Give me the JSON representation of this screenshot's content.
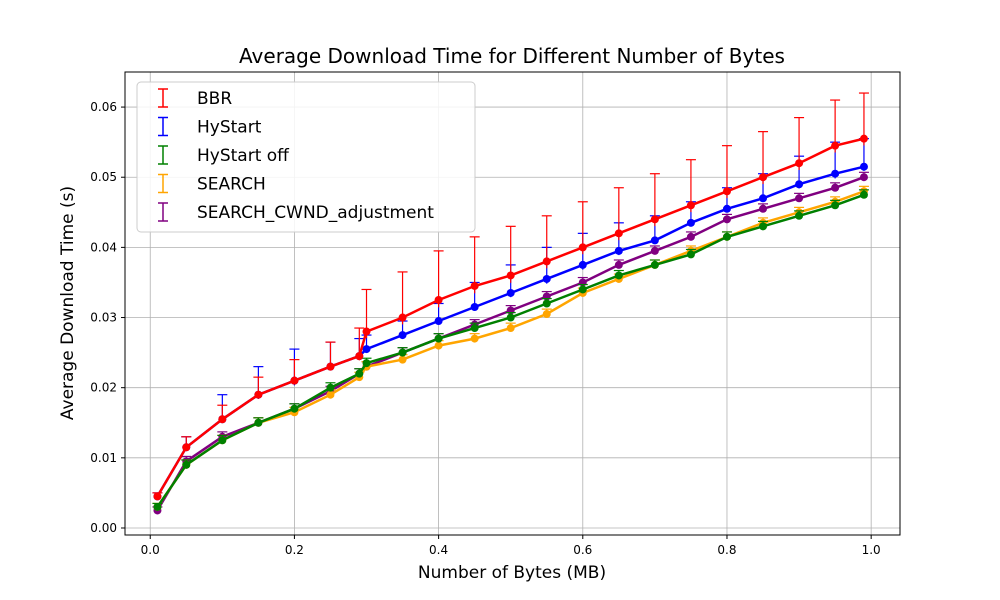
{
  "chart_data": {
    "type": "line",
    "title": "Average Download Time for Different Number of Bytes",
    "xlabel": "Number of Bytes (MB)",
    "ylabel": "Average Download Time (s)",
    "xlim": [
      -0.035,
      1.04
    ],
    "ylim": [
      -0.001,
      0.065
    ],
    "x_ticks": [
      0.0,
      0.2,
      0.4,
      0.6,
      0.8,
      1.0
    ],
    "x_tick_labels": [
      "0.0",
      "0.2",
      "0.4",
      "0.6",
      "0.8",
      "1.0"
    ],
    "y_ticks": [
      0.0,
      0.01,
      0.02,
      0.03,
      0.04,
      0.05,
      0.06
    ],
    "y_tick_labels": [
      "0.00",
      "0.01",
      "0.02",
      "0.03",
      "0.04",
      "0.05",
      "0.06"
    ],
    "grid": true,
    "legend_position": "top-left",
    "error_bars": true,
    "x": [
      0.01,
      0.05,
      0.1,
      0.15,
      0.2,
      0.25,
      0.29,
      0.3,
      0.35,
      0.4,
      0.45,
      0.5,
      0.55,
      0.6,
      0.65,
      0.7,
      0.75,
      0.8,
      0.85,
      0.9,
      0.95,
      0.99
    ],
    "series": [
      {
        "name": "BBR",
        "color": "#ff0000",
        "values": [
          0.0045,
          0.0115,
          0.0155,
          0.019,
          0.021,
          0.023,
          0.0245,
          0.028,
          0.03,
          0.0325,
          0.0345,
          0.036,
          0.038,
          0.04,
          0.042,
          0.044,
          0.046,
          0.048,
          0.05,
          0.052,
          0.0545,
          0.0555
        ],
        "errors": [
          0.0005,
          0.0015,
          0.002,
          0.0025,
          0.003,
          0.0035,
          0.004,
          0.006,
          0.0065,
          0.007,
          0.007,
          0.007,
          0.0065,
          0.0065,
          0.0065,
          0.0065,
          0.0065,
          0.0065,
          0.0065,
          0.0065,
          0.0065,
          0.0065
        ]
      },
      {
        "name": "HyStart",
        "color": "#0000ff",
        "values": [
          0.0045,
          0.0115,
          0.0155,
          0.019,
          0.021,
          0.023,
          0.0245,
          0.0255,
          0.0275,
          0.0295,
          0.0315,
          0.0335,
          0.0355,
          0.0375,
          0.0395,
          0.041,
          0.0435,
          0.0455,
          0.047,
          0.049,
          0.0505,
          0.0515
        ],
        "errors": [
          0.0005,
          0.0015,
          0.0035,
          0.004,
          0.0045,
          0.0035,
          0.0025,
          0.002,
          0.002,
          0.0025,
          0.0035,
          0.004,
          0.0045,
          0.0045,
          0.004,
          0.0035,
          0.003,
          0.003,
          0.0035,
          0.004,
          0.0045,
          0.004
        ]
      },
      {
        "name": "HyStart off",
        "color": "#008000",
        "values": [
          0.003,
          0.009,
          0.0125,
          0.015,
          0.017,
          0.02,
          0.022,
          0.0235,
          0.025,
          0.027,
          0.0285,
          0.03,
          0.032,
          0.034,
          0.036,
          0.0375,
          0.039,
          0.0415,
          0.043,
          0.0445,
          0.046,
          0.0475
        ],
        "errors": [
          0.0005,
          0.0007,
          0.0007,
          0.0007,
          0.0007,
          0.0007,
          0.0007,
          0.0007,
          0.0007,
          0.0007,
          0.0007,
          0.0007,
          0.0007,
          0.0007,
          0.0007,
          0.0007,
          0.0007,
          0.0007,
          0.0007,
          0.0007,
          0.0007,
          0.0007
        ]
      },
      {
        "name": "SEARCH",
        "color": "#ffa500",
        "values": [
          0.003,
          0.009,
          0.0125,
          0.015,
          0.0165,
          0.019,
          0.0215,
          0.023,
          0.024,
          0.026,
          0.027,
          0.0285,
          0.0305,
          0.0335,
          0.0355,
          0.0375,
          0.0395,
          0.0415,
          0.0435,
          0.045,
          0.0465,
          0.048
        ],
        "errors": [
          0.0005,
          0.0007,
          0.0007,
          0.0007,
          0.0007,
          0.0007,
          0.0007,
          0.0007,
          0.0007,
          0.0007,
          0.0007,
          0.0007,
          0.0007,
          0.0007,
          0.0007,
          0.0007,
          0.0007,
          0.0007,
          0.0007,
          0.0007,
          0.0007,
          0.0007
        ]
      },
      {
        "name": "SEARCH_CWND_adjustment",
        "color": "#800080",
        "values": [
          0.0025,
          0.0095,
          0.013,
          0.015,
          0.017,
          0.0195,
          0.022,
          0.023,
          0.025,
          0.027,
          0.029,
          0.031,
          0.033,
          0.035,
          0.0375,
          0.0395,
          0.0415,
          0.044,
          0.0455,
          0.047,
          0.0485,
          0.05
        ],
        "errors": [
          0.0005,
          0.0007,
          0.0007,
          0.0007,
          0.0007,
          0.0007,
          0.0007,
          0.0007,
          0.0007,
          0.0007,
          0.0007,
          0.0007,
          0.0007,
          0.0007,
          0.0007,
          0.0007,
          0.0007,
          0.0007,
          0.0007,
          0.0007,
          0.0007,
          0.0007
        ]
      }
    ]
  }
}
